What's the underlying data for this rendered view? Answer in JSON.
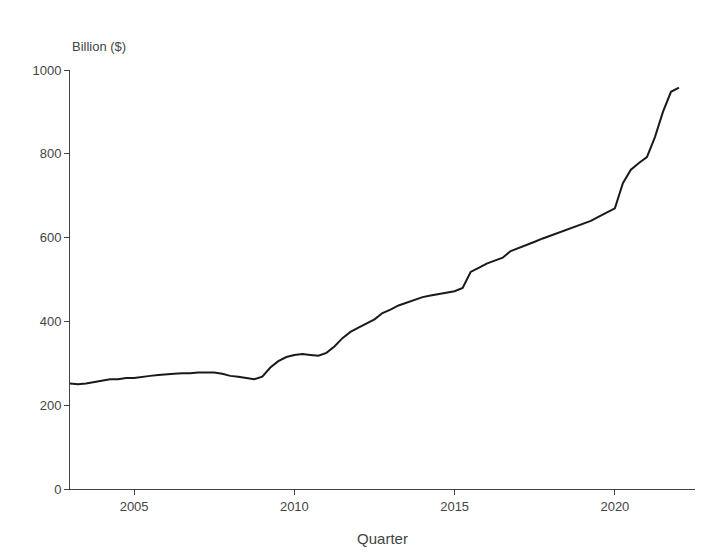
{
  "chart_data": {
    "type": "line",
    "xlabel": "Quarter",
    "ylabel": "Billion ($)",
    "color": "#1a1a1a",
    "xlim": [
      2003.0,
      2022.5
    ],
    "xticks": [
      2005,
      2010,
      2015,
      2020
    ],
    "ylim": [
      0,
      1000
    ],
    "yticks": [
      0,
      200,
      400,
      600,
      800,
      1000
    ],
    "grid": false,
    "x": [
      2003.0,
      2003.25,
      2003.5,
      2003.75,
      2004.0,
      2004.25,
      2004.5,
      2004.75,
      2005.0,
      2005.25,
      2005.5,
      2005.75,
      2006.0,
      2006.25,
      2006.5,
      2006.75,
      2007.0,
      2007.25,
      2007.5,
      2007.75,
      2008.0,
      2008.25,
      2008.5,
      2008.75,
      2009.0,
      2009.25,
      2009.5,
      2009.75,
      2010.0,
      2010.25,
      2010.5,
      2010.75,
      2011.0,
      2011.25,
      2011.5,
      2011.75,
      2012.0,
      2012.25,
      2012.5,
      2012.75,
      2013.0,
      2013.25,
      2013.5,
      2013.75,
      2014.0,
      2014.25,
      2014.5,
      2014.75,
      2015.0,
      2015.25,
      2015.5,
      2015.75,
      2016.0,
      2016.25,
      2016.5,
      2016.75,
      2017.0,
      2017.25,
      2017.5,
      2017.75,
      2018.0,
      2018.25,
      2018.5,
      2018.75,
      2019.0,
      2019.25,
      2019.5,
      2019.75,
      2020.0,
      2020.25,
      2020.5,
      2020.75,
      2021.0,
      2021.25,
      2021.5,
      2021.75,
      2022.0
    ],
    "values": [
      252,
      250,
      252,
      255,
      258,
      262,
      262,
      265,
      265,
      268,
      270,
      272,
      274,
      275,
      276,
      276,
      278,
      278,
      278,
      275,
      270,
      268,
      265,
      262,
      268,
      290,
      305,
      315,
      320,
      322,
      320,
      318,
      325,
      340,
      360,
      375,
      385,
      395,
      405,
      420,
      428,
      438,
      445,
      452,
      458,
      462,
      465,
      468,
      472,
      480,
      518,
      528,
      538,
      545,
      552,
      568,
      575,
      582,
      590,
      598,
      605,
      612,
      618,
      625,
      632,
      640,
      650,
      660,
      670,
      730,
      762,
      778,
      792,
      840,
      900,
      948,
      958
    ]
  }
}
